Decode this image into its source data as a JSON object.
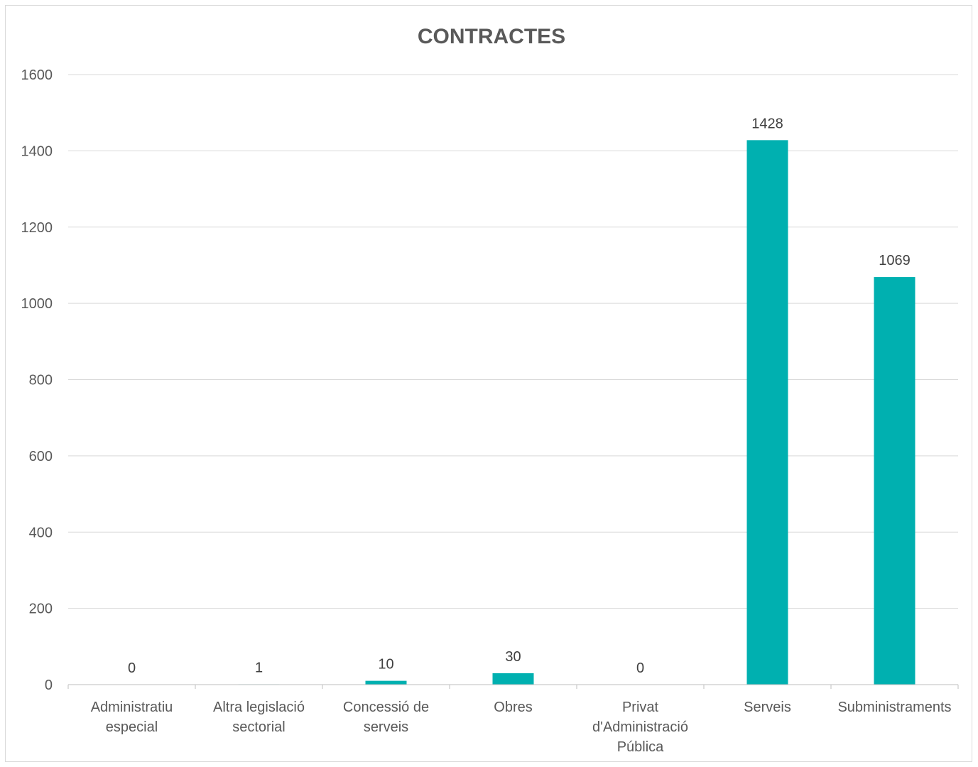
{
  "chart_data": {
    "type": "bar",
    "title": "CONTRACTES",
    "xlabel": "",
    "ylabel": "",
    "categories": [
      [
        "Administratiu",
        "especial"
      ],
      [
        "Altra legislació",
        "sectorial"
      ],
      [
        "Concessió de",
        "serveis"
      ],
      [
        "Obres"
      ],
      [
        "Privat",
        "d'Administració",
        "Pública"
      ],
      [
        "Serveis"
      ],
      [
        "Subministraments"
      ]
    ],
    "values": [
      0,
      1,
      10,
      30,
      0,
      1428,
      1069
    ],
    "ylim": [
      0,
      1600
    ],
    "yticks": [
      0,
      200,
      400,
      600,
      800,
      1000,
      1200,
      1400,
      1600
    ],
    "bar_color": "#00b0b0",
    "grid": true,
    "legend": "none"
  }
}
